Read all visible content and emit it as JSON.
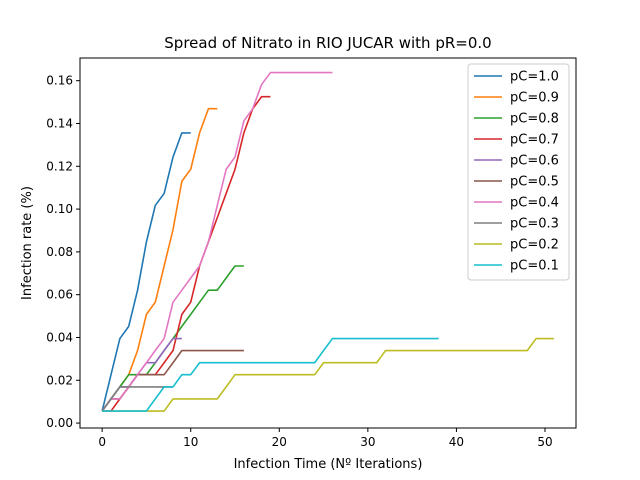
{
  "chart_data": {
    "type": "line",
    "title": "Spread of Nitrato in RIO JUCAR with pR=0.0",
    "xlabel": "Infection Time (Nº Iterations)",
    "ylabel": "Infection rate (%)",
    "xlim": [
      -2.5,
      53.5
    ],
    "ylim": [
      -0.0023,
      0.1706
    ],
    "xticks": [
      0,
      10,
      20,
      30,
      40,
      50
    ],
    "yticks": [
      0.0,
      0.02,
      0.04,
      0.06,
      0.08,
      0.1,
      0.12,
      0.14,
      0.16
    ],
    "ytick_labels": [
      "0.00",
      "0.02",
      "0.04",
      "0.06",
      "0.08",
      "0.10",
      "0.12",
      "0.14",
      "0.16"
    ],
    "grid": false,
    "legend_position": "top-right",
    "series": [
      {
        "name": "pC=1.0",
        "color": "#1f77b4",
        "x": [
          0,
          1,
          2,
          3,
          4,
          5,
          6,
          7,
          8,
          9,
          10
        ],
        "y": [
          0.0056,
          0.0226,
          0.0395,
          0.0452,
          0.0621,
          0.0847,
          0.1017,
          0.1073,
          0.1243,
          0.1356,
          0.1356
        ]
      },
      {
        "name": "pC=0.9",
        "color": "#ff7f0e",
        "x": [
          0,
          1,
          2,
          3,
          4,
          5,
          6,
          7,
          8,
          9,
          10,
          11,
          12,
          13
        ],
        "y": [
          0.0056,
          0.0113,
          0.0169,
          0.0226,
          0.0339,
          0.0508,
          0.0565,
          0.0734,
          0.0904,
          0.113,
          0.1186,
          0.1356,
          0.1469,
          0.1469
        ]
      },
      {
        "name": "pC=0.8",
        "color": "#2ca02c",
        "x": [
          0,
          1,
          2,
          3,
          4,
          5,
          6,
          7,
          8,
          9,
          10,
          11,
          12,
          13,
          14,
          15,
          16
        ],
        "y": [
          0.0056,
          0.0113,
          0.0169,
          0.0226,
          0.0226,
          0.0226,
          0.0282,
          0.0339,
          0.0395,
          0.0452,
          0.0508,
          0.0565,
          0.0621,
          0.0621,
          0.0678,
          0.0734,
          0.0734
        ]
      },
      {
        "name": "pC=0.7",
        "color": "#d62728",
        "x": [
          0,
          1,
          2,
          3,
          4,
          5,
          6,
          7,
          8,
          9,
          10,
          11,
          12,
          13,
          14,
          15,
          16,
          17,
          18,
          19
        ],
        "y": [
          0.0056,
          0.0056,
          0.0113,
          0.0169,
          0.0226,
          0.0226,
          0.0226,
          0.0282,
          0.0339,
          0.0508,
          0.0565,
          0.0734,
          0.0847,
          0.096,
          0.1073,
          0.1186,
          0.1356,
          0.1469,
          0.1525,
          0.1525
        ]
      },
      {
        "name": "pC=0.6",
        "color": "#9467bd",
        "x": [
          0,
          1,
          2,
          3,
          4,
          5,
          6,
          7,
          8,
          9
        ],
        "y": [
          0.0056,
          0.0113,
          0.0169,
          0.0169,
          0.0226,
          0.0282,
          0.0282,
          0.0339,
          0.0395,
          0.0395
        ]
      },
      {
        "name": "pC=0.5",
        "color": "#8c564b",
        "x": [
          0,
          1,
          2,
          3,
          4,
          5,
          6,
          7,
          8,
          9,
          10,
          11,
          12,
          13,
          14,
          15,
          16
        ],
        "y": [
          0.0056,
          0.0113,
          0.0113,
          0.0169,
          0.0226,
          0.0226,
          0.0226,
          0.0226,
          0.0282,
          0.0339,
          0.0339,
          0.0339,
          0.0339,
          0.0339,
          0.0339,
          0.0339,
          0.0339
        ]
      },
      {
        "name": "pC=0.4",
        "color": "#e377c2",
        "x": [
          0,
          1,
          2,
          3,
          4,
          5,
          6,
          7,
          8,
          9,
          10,
          11,
          12,
          13,
          14,
          15,
          16,
          17,
          18,
          19,
          20,
          21,
          22,
          23,
          24,
          25,
          26
        ],
        "y": [
          0.0056,
          0.0113,
          0.0113,
          0.0169,
          0.0226,
          0.0282,
          0.0339,
          0.0395,
          0.0565,
          0.0621,
          0.0678,
          0.0734,
          0.0847,
          0.1017,
          0.1186,
          0.1243,
          0.1412,
          0.1469,
          0.1582,
          0.1638,
          0.1638,
          0.1638,
          0.1638,
          0.1638,
          0.1638,
          0.1638,
          0.1638
        ]
      },
      {
        "name": "pC=0.3",
        "color": "#7f7f7f",
        "x": [
          0,
          1,
          2,
          3,
          4,
          5,
          6,
          7,
          8
        ],
        "y": [
          0.0056,
          0.0113,
          0.0169,
          0.0169,
          0.0169,
          0.0169,
          0.0169,
          0.0169,
          0.0169
        ]
      },
      {
        "name": "pC=0.2",
        "color": "#bcbd22",
        "x": [
          0,
          1,
          2,
          3,
          4,
          5,
          6,
          7,
          8,
          9,
          10,
          11,
          12,
          13,
          14,
          15,
          16,
          17,
          18,
          19,
          20,
          21,
          22,
          23,
          24,
          25,
          26,
          27,
          28,
          29,
          30,
          31,
          32,
          33,
          34,
          35,
          36,
          37,
          38,
          39,
          40,
          41,
          42,
          43,
          44,
          45,
          46,
          47,
          48,
          49,
          50,
          51
        ],
        "y": [
          0.0056,
          0.0056,
          0.0056,
          0.0056,
          0.0056,
          0.0056,
          0.0056,
          0.0056,
          0.0113,
          0.0113,
          0.0113,
          0.0113,
          0.0113,
          0.0113,
          0.0169,
          0.0226,
          0.0226,
          0.0226,
          0.0226,
          0.0226,
          0.0226,
          0.0226,
          0.0226,
          0.0226,
          0.0226,
          0.0282,
          0.0282,
          0.0282,
          0.0282,
          0.0282,
          0.0282,
          0.0282,
          0.0339,
          0.0339,
          0.0339,
          0.0339,
          0.0339,
          0.0339,
          0.0339,
          0.0339,
          0.0339,
          0.0339,
          0.0339,
          0.0339,
          0.0339,
          0.0339,
          0.0339,
          0.0339,
          0.0339,
          0.0395,
          0.0395,
          0.0395
        ]
      },
      {
        "name": "pC=0.1",
        "color": "#17becf",
        "x": [
          0,
          1,
          2,
          3,
          4,
          5,
          6,
          7,
          8,
          9,
          10,
          11,
          12,
          13,
          14,
          15,
          16,
          17,
          18,
          19,
          20,
          21,
          22,
          23,
          24,
          25,
          26,
          27,
          28,
          29,
          30,
          31,
          32,
          33,
          34,
          35,
          36,
          37,
          38
        ],
        "y": [
          0.0056,
          0.0056,
          0.0056,
          0.0056,
          0.0056,
          0.0056,
          0.0113,
          0.0169,
          0.0169,
          0.0226,
          0.0226,
          0.0282,
          0.0282,
          0.0282,
          0.0282,
          0.0282,
          0.0282,
          0.0282,
          0.0282,
          0.0282,
          0.0282,
          0.0282,
          0.0282,
          0.0282,
          0.0282,
          0.0339,
          0.0395,
          0.0395,
          0.0395,
          0.0395,
          0.0395,
          0.0395,
          0.0395,
          0.0395,
          0.0395,
          0.0395,
          0.0395,
          0.0395,
          0.0395
        ]
      }
    ]
  }
}
